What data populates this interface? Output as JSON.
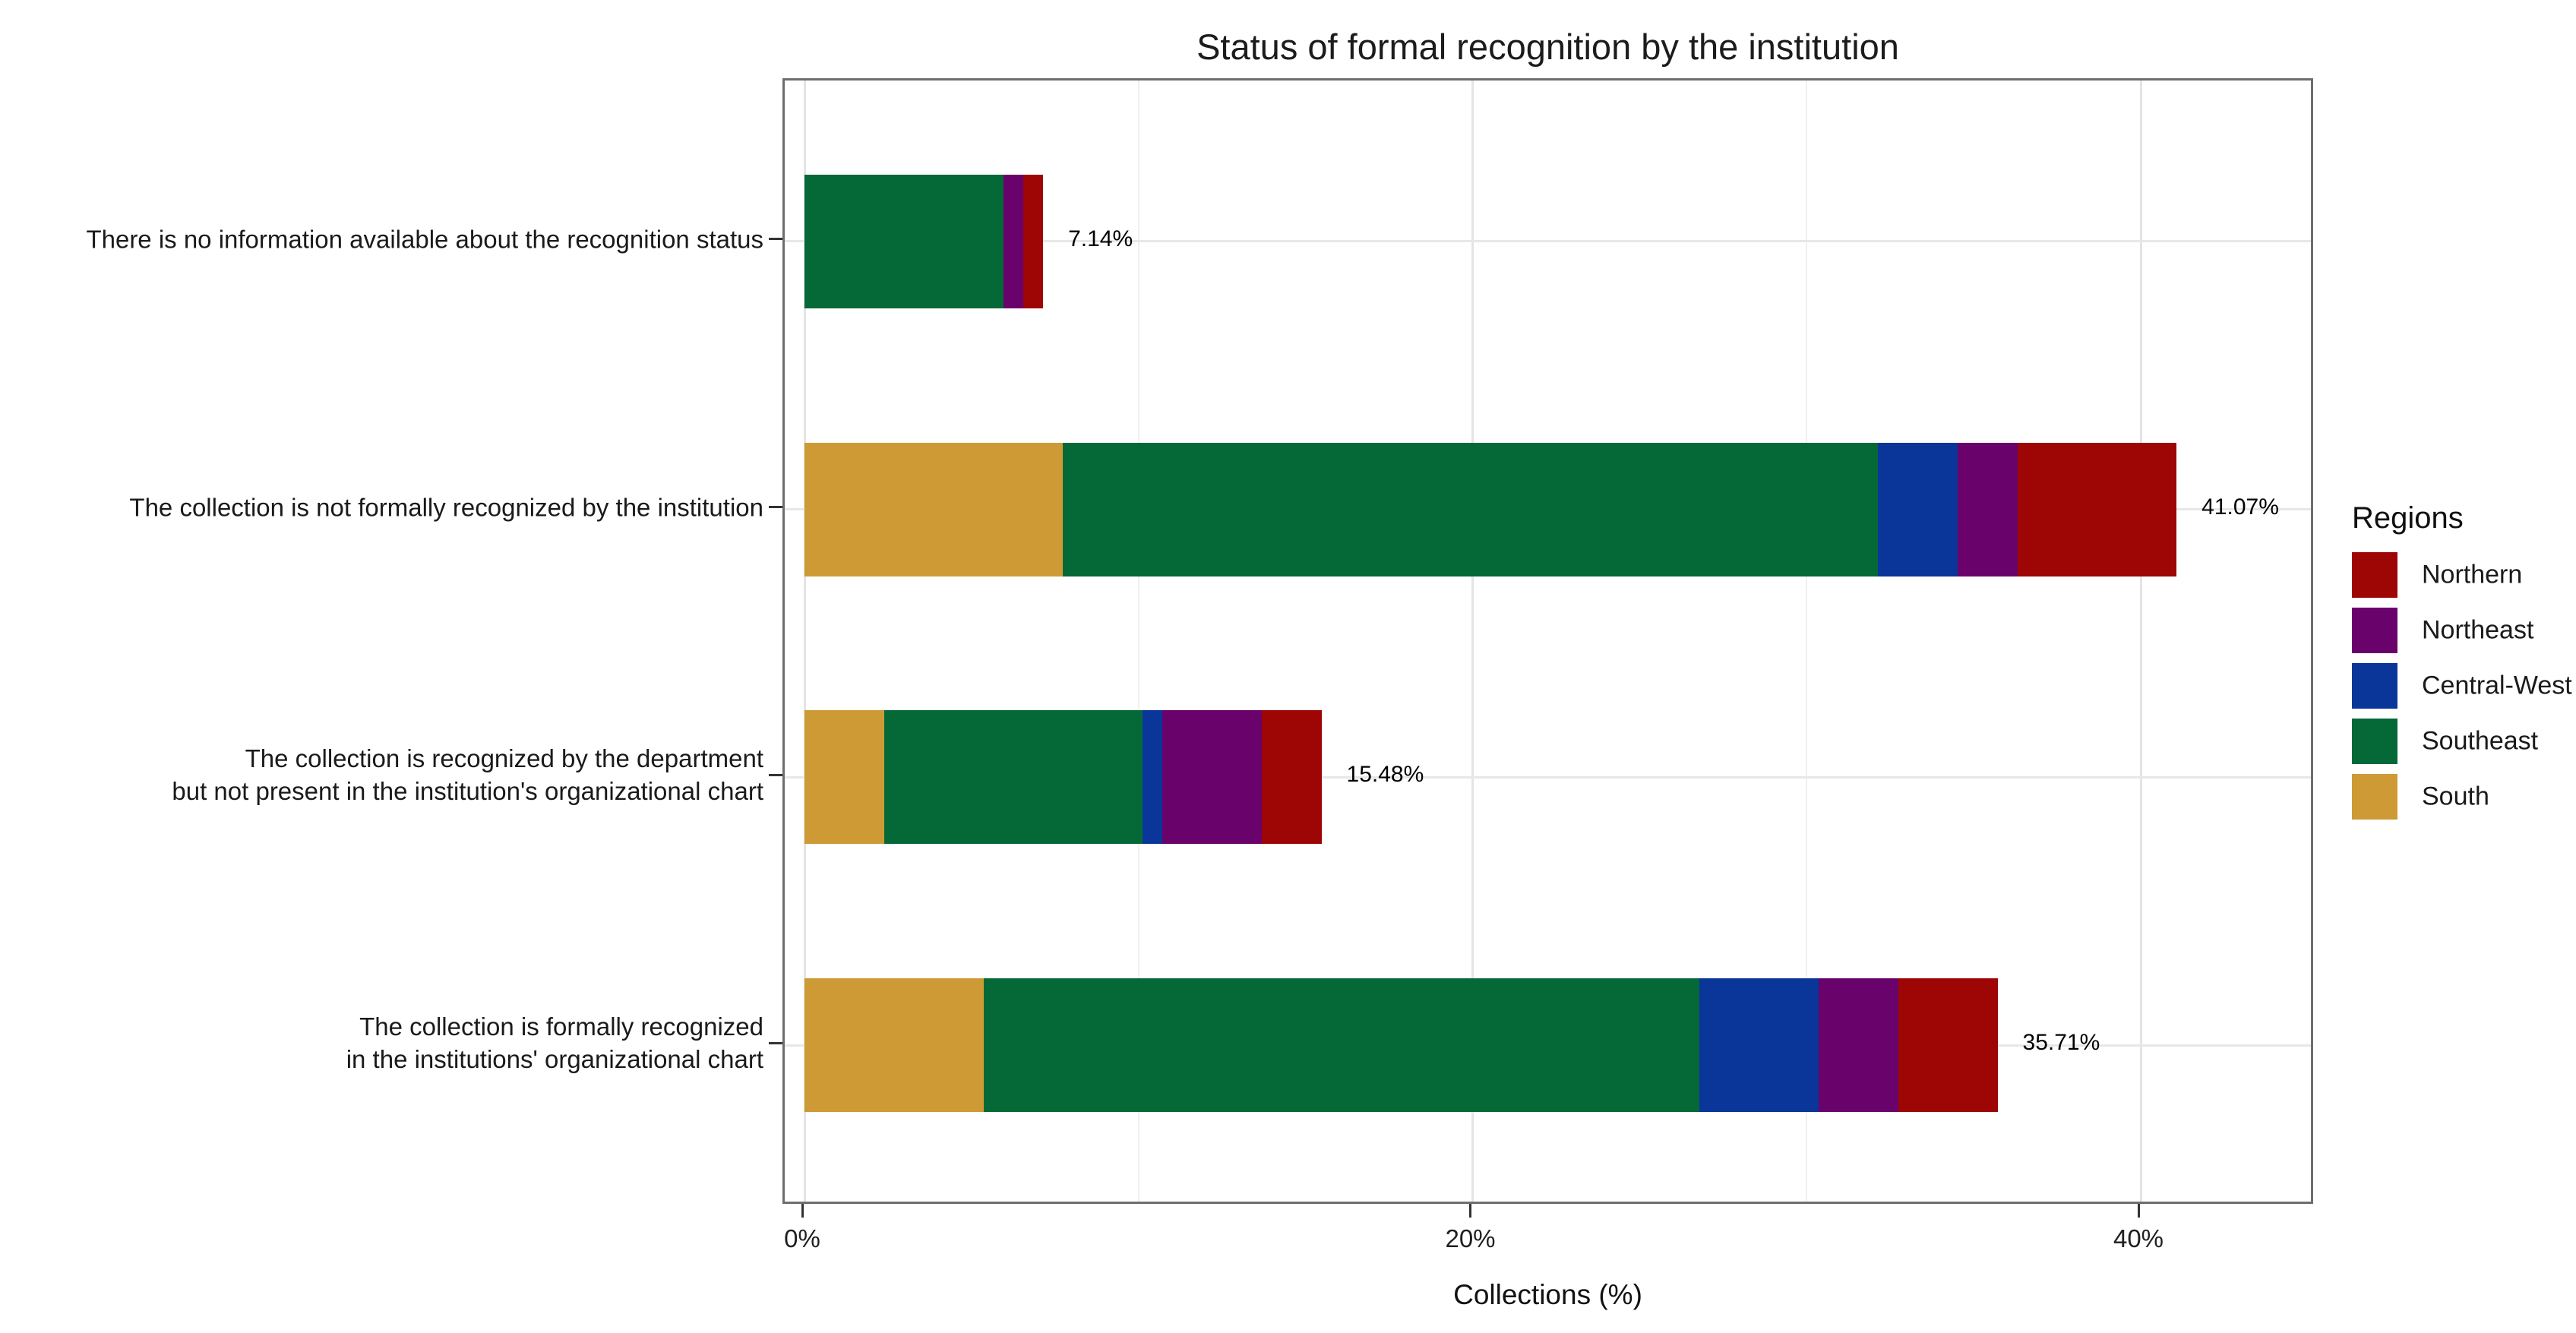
{
  "chart_data": {
    "type": "bar",
    "orientation": "horizontal",
    "stacked": true,
    "title": "Status of formal recognition by the institution",
    "xlabel": "Collections (%)",
    "legend_title": "Regions",
    "legend_position": "right",
    "grid": true,
    "x_axis": {
      "ticks": [
        0,
        20,
        40
      ],
      "tick_labels": [
        "0%",
        "20%",
        "40%"
      ],
      "minor_ticks": [
        10,
        30
      ],
      "range_shown": [
        0,
        45.2
      ]
    },
    "legend_order": [
      "Northern",
      "Northeast",
      "Central-West",
      "Southeast",
      "South"
    ],
    "stack_order": [
      "South",
      "Southeast",
      "Central-West",
      "Northeast",
      "Northern"
    ],
    "region_colors": {
      "Northern": "#9E0505",
      "Northeast": "#69026B",
      "Central-West": "#0A3699",
      "Southeast": "#046937",
      "South": "#CE9A35"
    },
    "categories": [
      {
        "label_lines": [
          "There is no information available about the recognition status"
        ],
        "total": 7.142,
        "total_label": "7.14%",
        "values": {
          "South": 0,
          "Southeast": 5.952,
          "Central-West": 0,
          "Northeast": 0.595,
          "Northern": 0.595
        }
      },
      {
        "label_lines": [
          "The collection is not formally recognized by the institution"
        ],
        "total": 41.072,
        "total_label": "41.07%",
        "values": {
          "South": 7.738,
          "Southeast": 24.405,
          "Central-West": 2.381,
          "Northeast": 1.786,
          "Northern": 4.762
        }
      },
      {
        "label_lines": [
          "The collection is recognized by the department",
          "but not present in the institution's organizational chart"
        ],
        "total": 15.476,
        "total_label": "15.48%",
        "values": {
          "South": 2.381,
          "Southeast": 7.738,
          "Central-West": 0.595,
          "Northeast": 2.976,
          "Northern": 1.786
        }
      },
      {
        "label_lines": [
          "The collection is formally recognized",
          "in the institutions' organizational chart"
        ],
        "total": 35.714,
        "total_label": "35.71%",
        "values": {
          "South": 5.357,
          "Southeast": 21.429,
          "Central-West": 3.571,
          "Northeast": 2.381,
          "Northern": 2.976
        }
      }
    ]
  }
}
